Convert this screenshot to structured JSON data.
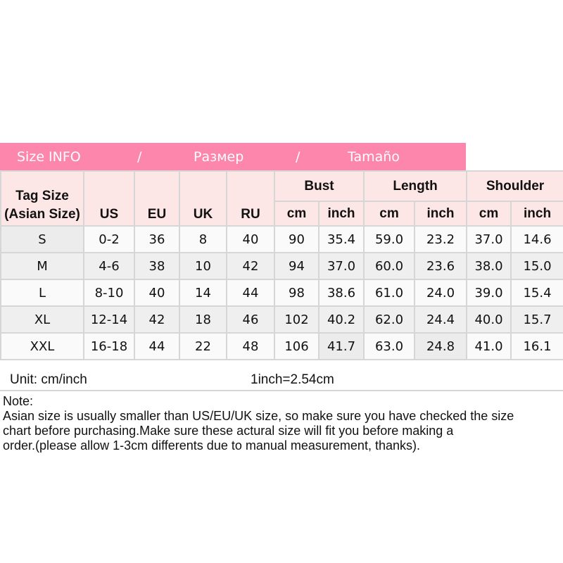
{
  "banner": {
    "part1": "Size INFO",
    "sep1": "/",
    "part2": "Размер",
    "sep2": "/",
    "part3": "Tamaño",
    "color": "#fd86ad"
  },
  "header": {
    "tag_size_line1": "Tag Size",
    "tag_size_line2": "(Asian Size)",
    "us": "US",
    "eu": "EU",
    "uk": "UK",
    "ru": "RU",
    "bust": "Bust",
    "length": "Length",
    "shoulder": "Shoulder",
    "cm": "cm",
    "inch": "inch"
  },
  "rows": [
    [
      "S",
      "0-2",
      "36",
      "8",
      "40",
      "90",
      "35.4",
      "59.0",
      "23.2",
      "37.0",
      "14.6"
    ],
    [
      "M",
      "4-6",
      "38",
      "10",
      "42",
      "94",
      "37.0",
      "60.0",
      "23.6",
      "38.0",
      "15.0"
    ],
    [
      "L",
      "8-10",
      "40",
      "14",
      "44",
      "98",
      "38.6",
      "61.0",
      "24.0",
      "39.0",
      "15.4"
    ],
    [
      "XL",
      "12-14",
      "42",
      "18",
      "46",
      "102",
      "40.2",
      "62.0",
      "24.4",
      "40.0",
      "15.7"
    ],
    [
      "XXL",
      "16-18",
      "44",
      "22",
      "48",
      "106",
      "41.7",
      "63.0",
      "24.8",
      "41.0",
      "16.1"
    ]
  ],
  "unit": {
    "label": "Unit: cm/inch",
    "conversion": "1inch=2.54cm"
  },
  "note": {
    "title": "Note:",
    "lines": [
      "Asian size is usually smaller than US/EU/UK size, so make sure you have checked the size",
      "chart before purchasing.Make sure these actural size will fit you before making a",
      "order.(please allow 1-3cm differents due to manual measurement, thanks)."
    ]
  }
}
